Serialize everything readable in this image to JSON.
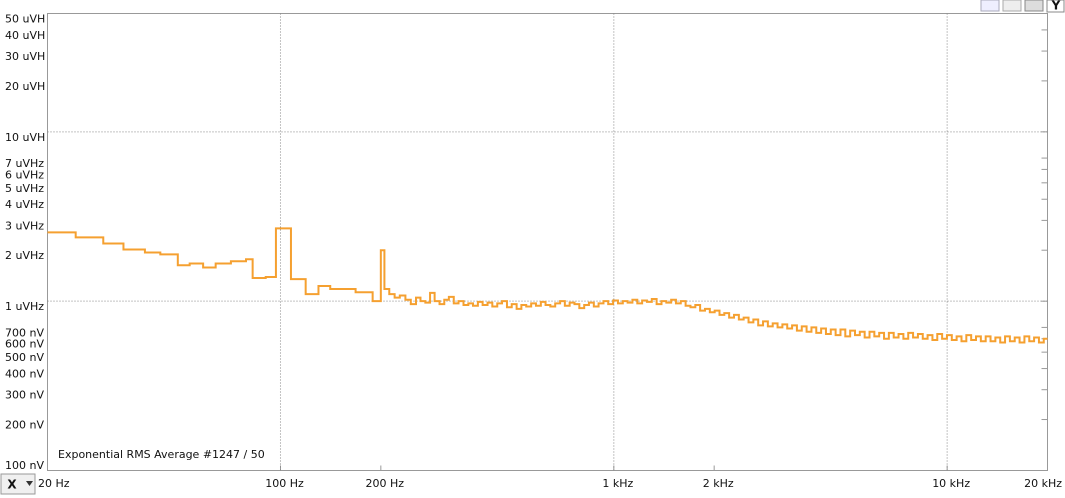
{
  "chart_data": {
    "type": "step",
    "annotation": "Exponential RMS Average #1247 / 50",
    "x_button": "X",
    "y_button": "Y",
    "log_x": true,
    "log_y": true,
    "grid": true,
    "color": "#f5a030",
    "xlim": [
      20,
      20000
    ],
    "ylim": [
      0.1,
      50
    ],
    "xticks": [
      {
        "value": 20,
        "label": "20 Hz"
      },
      {
        "value": 100,
        "label": "100 Hz"
      },
      {
        "value": 200,
        "label": "200 Hz"
      },
      {
        "value": 1000,
        "label": "1 kHz"
      },
      {
        "value": 2000,
        "label": "2 kHz"
      },
      {
        "value": 10000,
        "label": "10 kHz"
      },
      {
        "value": 20000,
        "label": "20 kHz"
      }
    ],
    "yticks": [
      {
        "value": 50,
        "label": "50 uVH"
      },
      {
        "value": 40,
        "label": "40 uVH"
      },
      {
        "value": 30,
        "label": "30 uVH"
      },
      {
        "value": 20,
        "label": "20 uVH"
      },
      {
        "value": 10,
        "label": "10 uVH"
      },
      {
        "value": 7,
        "label": "7 uVHz"
      },
      {
        "value": 6,
        "label": "6 uVHz"
      },
      {
        "value": 5,
        "label": "5 uVHz"
      },
      {
        "value": 4,
        "label": "4 uVHz"
      },
      {
        "value": 3,
        "label": "3 uVHz"
      },
      {
        "value": 2,
        "label": "2 uVHz"
      },
      {
        "value": 1,
        "label": "1 uVHz"
      },
      {
        "value": 0.7,
        "label": "700 nV"
      },
      {
        "value": 0.6,
        "label": "600 nV"
      },
      {
        "value": 0.5,
        "label": "500 nV"
      },
      {
        "value": 0.4,
        "label": "400 nV"
      },
      {
        "value": 0.3,
        "label": "300 nV"
      },
      {
        "value": 0.2,
        "label": "200 nV"
      },
      {
        "value": 0.1,
        "label": "100 nV"
      }
    ],
    "x": [
      20,
      24.3,
      29.4,
      33.8,
      39.2,
      43.6,
      49.2,
      53.4,
      58.6,
      63.9,
      71,
      78.8,
      82.5,
      90.3,
      96.9,
      107.5,
      119,
      130,
      141,
      168,
      189,
      200,
      205,
      212,
      220,
      228,
      237,
      246,
      255,
      263,
      272,
      281,
      290,
      300,
      310,
      320,
      331,
      342,
      354,
      366,
      378,
      391,
      404,
      418,
      432,
      447,
      462,
      478,
      494,
      511,
      528,
      546,
      565,
      584,
      604,
      624,
      645,
      667,
      690,
      713,
      737,
      762,
      788,
      815,
      842,
      871,
      900,
      931,
      962,
      995,
      1029,
      1064,
      1100,
      1137,
      1176,
      1216,
      1257,
      1300,
      1344,
      1390,
      1437,
      1486,
      1536,
      1588,
      1642,
      1698,
      1756,
      1815,
      1877,
      1941,
      2007,
      2075,
      2145,
      2218,
      2294,
      2372,
      2452,
      2536,
      2622,
      2711,
      2803,
      2898,
      2997,
      3099,
      3204,
      3313,
      3426,
      3542,
      3663,
      3787,
      3916,
      4049,
      4187,
      4329,
      4476,
      4628,
      4786,
      4948,
      5117,
      5291,
      5470,
      5656,
      5849,
      6047,
      6253,
      6466,
      6685,
      6913,
      7148,
      7391,
      7642,
      7902,
      8171,
      8449,
      8736,
      9033,
      9340,
      9658,
      9986,
      10326,
      10677,
      11040,
      11416,
      11804,
      12205,
      12620,
      13050,
      13494,
      13952,
      14427,
      14917,
      15425,
      15949,
      16492,
      17052,
      17632,
      18232,
      18852,
      19493
    ],
    "values": [
      2.55,
      2.38,
      2.19,
      2.02,
      1.94,
      1.89,
      1.63,
      1.67,
      1.58,
      1.67,
      1.72,
      1.77,
      1.37,
      1.39,
      2.69,
      1.35,
      1.1,
      1.23,
      1.18,
      1.13,
      1.0,
      2.0,
      1.18,
      1.1,
      1.05,
      1.08,
      1.02,
      0.96,
      1.05,
      1.0,
      0.98,
      1.12,
      1.0,
      0.96,
      1.02,
      1.06,
      0.97,
      1.0,
      0.95,
      0.97,
      0.94,
      0.99,
      0.95,
      0.98,
      0.93,
      0.97,
      1.0,
      0.92,
      0.96,
      0.9,
      0.95,
      0.93,
      0.97,
      0.94,
      0.99,
      0.95,
      0.93,
      0.97,
      1.0,
      0.94,
      0.98,
      0.96,
      0.91,
      0.95,
      0.98,
      0.93,
      0.97,
      1.0,
      0.96,
      1.01,
      0.97,
      1.0,
      0.98,
      1.02,
      0.97,
      1.01,
      0.99,
      1.03,
      0.96,
      1.0,
      0.98,
      1.02,
      0.97,
      1.0,
      0.94,
      0.92,
      0.95,
      0.88,
      0.9,
      0.86,
      0.88,
      0.83,
      0.85,
      0.8,
      0.83,
      0.78,
      0.8,
      0.75,
      0.78,
      0.72,
      0.76,
      0.71,
      0.74,
      0.7,
      0.73,
      0.69,
      0.72,
      0.67,
      0.71,
      0.66,
      0.7,
      0.65,
      0.69,
      0.64,
      0.68,
      0.63,
      0.68,
      0.62,
      0.67,
      0.63,
      0.66,
      0.61,
      0.66,
      0.62,
      0.65,
      0.6,
      0.65,
      0.61,
      0.64,
      0.6,
      0.65,
      0.61,
      0.64,
      0.6,
      0.63,
      0.59,
      0.64,
      0.6,
      0.63,
      0.59,
      0.62,
      0.58,
      0.63,
      0.59,
      0.62,
      0.58,
      0.62,
      0.58,
      0.61,
      0.57,
      0.62,
      0.58,
      0.61,
      0.57,
      0.62,
      0.58,
      0.61,
      0.57,
      0.6
    ]
  }
}
